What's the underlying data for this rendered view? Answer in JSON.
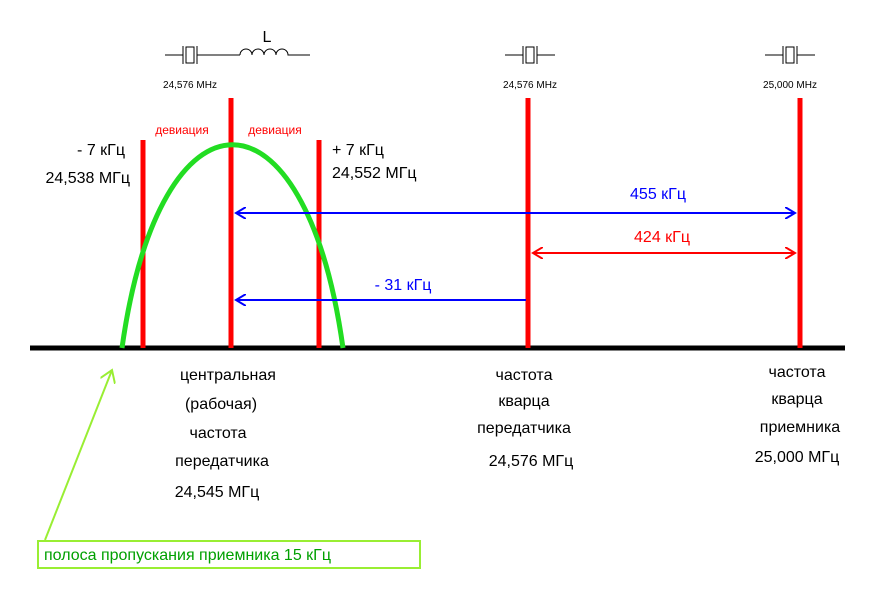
{
  "crystals": {
    "inductor_label": "L",
    "transmitter_left": "24,576 MHz",
    "transmitter": "24,576 MHz",
    "receiver": "25,000 MHz"
  },
  "deviation": {
    "left": "девиация",
    "right": "девиация"
  },
  "band_edges": {
    "lower": {
      "offset": "- 7 кГц",
      "freq": "24,538 МГц"
    },
    "upper": {
      "offset": "+ 7 кГц",
      "freq": "24,552 МГц"
    }
  },
  "arrows": {
    "if_455": "455 кГц",
    "diff_424": "424 кГц",
    "diff_31": "- 31 кГц"
  },
  "captions": {
    "center": [
      "центральная",
      "(рабочая)",
      "частота",
      "передатчика",
      "24,545 МГц"
    ],
    "tx_crystal": [
      "частота",
      "кварца",
      "передатчика",
      "24,576 МГц"
    ],
    "rx_crystal": [
      "частота",
      "кварца",
      "приемника",
      "25,000 МГц"
    ]
  },
  "note": "полоса пропускания приемника 15 кГц"
}
